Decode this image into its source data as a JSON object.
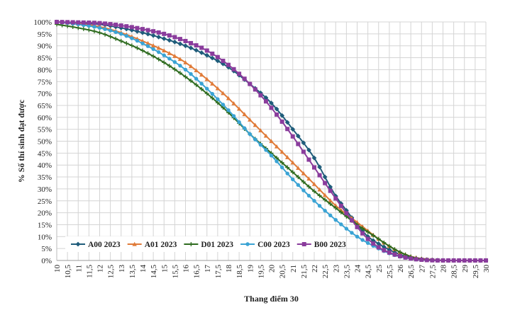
{
  "chart_data": {
    "type": "line",
    "title": "",
    "xlabel": "Thang điểm 30",
    "ylabel": "% Số thí sinh đạt được",
    "xlim": [
      10,
      30
    ],
    "ylim": [
      0,
      100
    ],
    "x_step": 0.5,
    "y_step": 5,
    "y_tick_suffix": "%",
    "grid": true,
    "legend_position": "bottom-left",
    "series": [
      {
        "name": "A00 2023",
        "color": "#1f5c7a",
        "marker": "diamond",
        "points": [
          [
            10,
            100
          ],
          [
            11,
            99.5
          ],
          [
            12,
            99
          ],
          [
            13,
            97.5
          ],
          [
            14,
            95.5
          ],
          [
            15,
            93
          ],
          [
            16,
            90
          ],
          [
            17,
            86
          ],
          [
            18,
            81
          ],
          [
            19,
            74
          ],
          [
            20,
            66
          ],
          [
            21,
            55
          ],
          [
            22,
            43
          ],
          [
            23,
            27
          ],
          [
            23.5,
            21
          ],
          [
            24,
            15
          ],
          [
            24.5,
            10
          ],
          [
            25,
            7
          ],
          [
            25.5,
            4.5
          ],
          [
            26,
            2.5
          ],
          [
            26.5,
            1.2
          ],
          [
            27,
            0.5
          ],
          [
            27.5,
            0.2
          ],
          [
            28,
            0
          ],
          [
            30,
            0
          ]
        ]
      },
      {
        "name": "A01 2023",
        "color": "#e07b39",
        "marker": "triangle",
        "points": [
          [
            10,
            100
          ],
          [
            11,
            99.3
          ],
          [
            12,
            98
          ],
          [
            13,
            95.5
          ],
          [
            14,
            92
          ],
          [
            15,
            88
          ],
          [
            16,
            83
          ],
          [
            17,
            76
          ],
          [
            18,
            68
          ],
          [
            19,
            59
          ],
          [
            20,
            50
          ],
          [
            21,
            41
          ],
          [
            22,
            32
          ],
          [
            23,
            23
          ],
          [
            24,
            16
          ],
          [
            25,
            9
          ],
          [
            25.5,
            6
          ],
          [
            26,
            3.5
          ],
          [
            26.5,
            1.7
          ],
          [
            27,
            0.8
          ],
          [
            27.5,
            0.3
          ],
          [
            28,
            0
          ],
          [
            30,
            0
          ]
        ]
      },
      {
        "name": "D01 2023",
        "color": "#2e6b1f",
        "marker": "cross",
        "points": [
          [
            10,
            99
          ],
          [
            11,
            97.5
          ],
          [
            12,
            95.5
          ],
          [
            13,
            92
          ],
          [
            14,
            88
          ],
          [
            15,
            83
          ],
          [
            16,
            77
          ],
          [
            17,
            70
          ],
          [
            18,
            62
          ],
          [
            19,
            53
          ],
          [
            20,
            45
          ],
          [
            21,
            37
          ],
          [
            22,
            29
          ],
          [
            23,
            22
          ],
          [
            24,
            15
          ],
          [
            25,
            9
          ],
          [
            25.5,
            6
          ],
          [
            26,
            3.5
          ],
          [
            26.5,
            1.6
          ],
          [
            27,
            0.6
          ],
          [
            27.5,
            0.2
          ],
          [
            28,
            0
          ],
          [
            30,
            0
          ]
        ]
      },
      {
        "name": "C00 2023",
        "color": "#3aa3d4",
        "marker": "circle",
        "points": [
          [
            10,
            100
          ],
          [
            11,
            99
          ],
          [
            12,
            97.5
          ],
          [
            13,
            95
          ],
          [
            14,
            91
          ],
          [
            15,
            86
          ],
          [
            16,
            80
          ],
          [
            17,
            72
          ],
          [
            18,
            63
          ],
          [
            19,
            53
          ],
          [
            20,
            44
          ],
          [
            21,
            34
          ],
          [
            22,
            25
          ],
          [
            23,
            17
          ],
          [
            24,
            10
          ],
          [
            25,
            5
          ],
          [
            25.5,
            3
          ],
          [
            26,
            1.6
          ],
          [
            26.5,
            0.7
          ],
          [
            27,
            0.2
          ],
          [
            28,
            0
          ],
          [
            30,
            0
          ]
        ]
      },
      {
        "name": "B00 2023",
        "color": "#8a3c9c",
        "marker": "square",
        "points": [
          [
            10,
            100
          ],
          [
            11,
            99.8
          ],
          [
            12,
            99.5
          ],
          [
            13,
            98.5
          ],
          [
            14,
            97
          ],
          [
            15,
            95
          ],
          [
            16,
            92
          ],
          [
            17,
            88
          ],
          [
            18,
            82
          ],
          [
            19,
            74
          ],
          [
            20,
            64
          ],
          [
            21,
            52
          ],
          [
            22,
            39
          ],
          [
            23,
            26
          ],
          [
            24,
            14
          ],
          [
            24.5,
            9
          ],
          [
            25,
            5.5
          ],
          [
            25.5,
            3.3
          ],
          [
            26,
            1.8
          ],
          [
            26.5,
            0.8
          ],
          [
            27,
            0.3
          ],
          [
            28,
            0
          ],
          [
            30,
            0
          ]
        ]
      }
    ]
  }
}
